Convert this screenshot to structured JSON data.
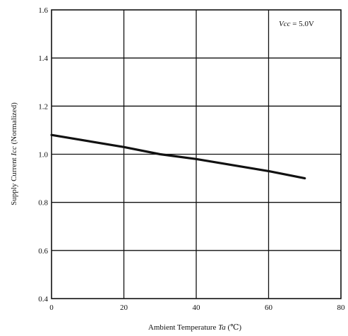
{
  "chart_data": {
    "type": "line",
    "title": "",
    "xlabel": {
      "prefix": "Ambient Temperature ",
      "symbol": "Ta",
      "unit": " (℃)"
    },
    "ylabel": {
      "prefix": "Supply Current ",
      "symbol": "Icc",
      "unit": " (Normalized)"
    },
    "annotation": {
      "symbol": "Vcc",
      "value": " = 5.0V"
    },
    "xlim": [
      0,
      80
    ],
    "ylim": [
      0.4,
      1.6
    ],
    "x_ticks": [
      "0",
      "20",
      "40",
      "60",
      "80"
    ],
    "x_tick_values": [
      0,
      20,
      40,
      60,
      80
    ],
    "y_ticks": [
      "0.4",
      "0.6",
      "0.8",
      "1.0",
      "1.2",
      "1.4",
      "1.6"
    ],
    "y_tick_values": [
      0.4,
      0.6,
      0.8,
      1.0,
      1.2,
      1.4,
      1.6
    ],
    "grid": true,
    "series": [
      {
        "x": [
          0,
          20,
          30,
          40,
          60,
          70
        ],
        "y": [
          1.08,
          1.03,
          1.0,
          0.98,
          0.93,
          0.9
        ]
      }
    ],
    "line_color": "#111111",
    "grid_color": "#111111"
  }
}
